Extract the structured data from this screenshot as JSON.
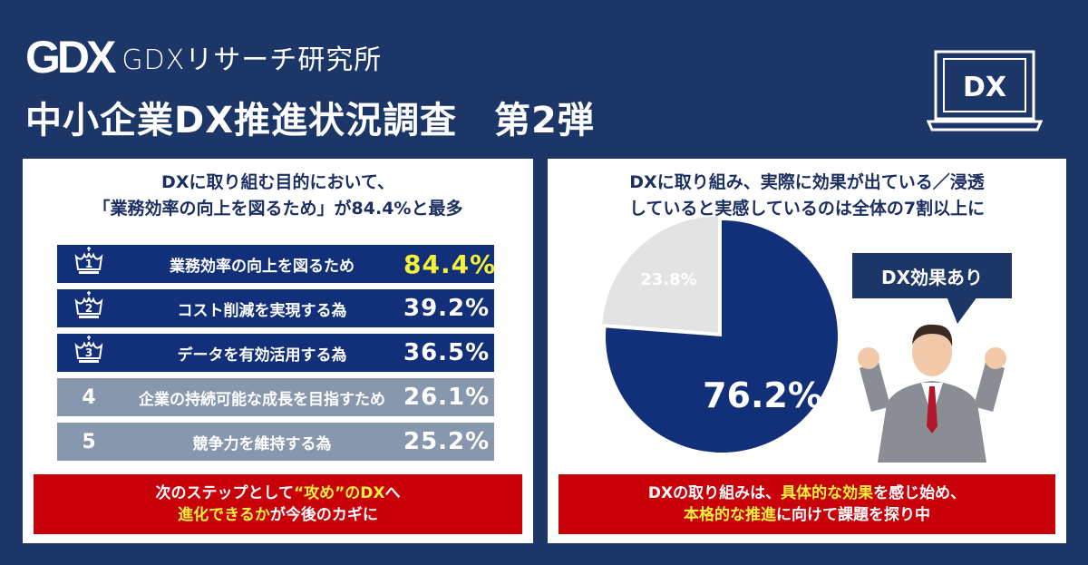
{
  "header": {
    "logo_mark": "GDX",
    "org_name": "GDXリサーチ研究所",
    "title": "中小企業DX推進状況調査　第2弾",
    "laptop_label": "DX"
  },
  "left_panel": {
    "title_line1": "DXに取り組む目的において、",
    "title_line2": "「業務効率の向上を図るため」が84.4%と最多",
    "items": [
      {
        "rank": "1",
        "label": "業務効率の向上を図るため",
        "value": "84.4%"
      },
      {
        "rank": "2",
        "label": "コスト削減を実現する為",
        "value": "39.2%"
      },
      {
        "rank": "3",
        "label": "データを有効活用する為",
        "value": "36.5%"
      },
      {
        "rank": "4",
        "label": "企業の持続可能な成長を目指すため",
        "value": "26.1%"
      },
      {
        "rank": "5",
        "label": "競争力を維持する為",
        "value": "25.2%"
      }
    ],
    "footer_a": "次のステップとして",
    "footer_b": "“攻め”のDX",
    "footer_c": "へ",
    "footer_d": "進化できるか",
    "footer_e": "が今後のカギに"
  },
  "right_panel": {
    "title_line1": "DXに取り組み、実際に効果が出ている／浸透",
    "title_line2": "していると実感しているのは全体の7割以上に",
    "bubble": "DX効果あり",
    "footer_a": "DXの取り組みは、",
    "footer_b": "具体的な効果",
    "footer_c": "を感じ始め、",
    "footer_d": "本格的な推進",
    "footer_e": "に向けて課題を探り中"
  },
  "colors": {
    "background": "#1c3668",
    "top_rank": "#12307a",
    "other_rank": "#8797ae",
    "accent_red": "#c8000a",
    "highlight": "#f5f03a",
    "pie_gray": "#e3e3e3"
  },
  "chart_data": {
    "type": "pie",
    "slices": [
      {
        "value": 76.2,
        "label": "76.2%",
        "color": "#12307a"
      },
      {
        "value": 23.8,
        "label": "23.8%",
        "color": "#e3e3e3"
      }
    ]
  }
}
